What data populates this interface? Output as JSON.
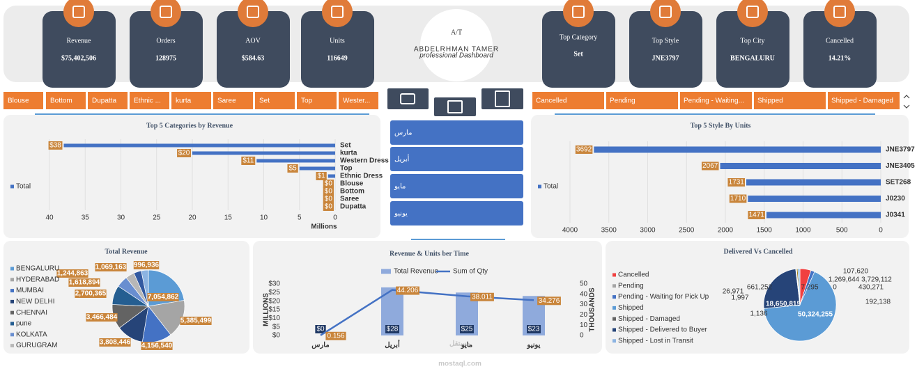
{
  "logo": {
    "monogram": "A/T",
    "name": "ABDELRHMAN TAMER",
    "tagline": "professional Dashboard"
  },
  "kpis": [
    {
      "label": "Revenue",
      "value": "$75,402,506"
    },
    {
      "label": "Orders",
      "value": "128975"
    },
    {
      "label": "AOV",
      "value": "$584.63"
    },
    {
      "label": "Units",
      "value": "116649"
    },
    {
      "label": "Top Category",
      "value": "Set"
    },
    {
      "label": "Top Style",
      "value": "JNE3797"
    },
    {
      "label": "Top City",
      "value": "BENGALURU"
    },
    {
      "label": "Cancelled",
      "value": "14.21%"
    }
  ],
  "category_slicer": [
    "Blouse",
    "Bottom",
    "Dupatta",
    "Ethnic ...",
    "kurta",
    "Saree",
    "Set",
    "Top",
    "Wester..."
  ],
  "status_slicer": [
    "Cancelled",
    "Pending",
    "Pending - Waiting...",
    "Shipped",
    "Shipped - Damaged"
  ],
  "month_slicer": [
    "مارس",
    "أبريل",
    "مايو",
    "يونيو"
  ],
  "watermark": {
    "arabic": "مستقل",
    "latin": "mostaql.com"
  },
  "chart_data": [
    {
      "type": "bar",
      "horizontal": true,
      "title": "Top 5 Categories by Revenue",
      "categories": [
        "Set",
        "kurta",
        "Western Dress",
        "Top",
        "Ethnic Dress",
        "Blouse",
        "Bottom",
        "Saree",
        "Dupatta"
      ],
      "series": [
        {
          "name": "Total",
          "color": "#4472c4",
          "values": [
            38,
            20,
            11,
            5,
            1,
            0,
            0,
            0,
            0
          ],
          "value_labels": [
            "$38",
            "$20",
            "$11",
            "$5",
            "$1",
            "$0",
            "$0",
            "$0",
            "$0"
          ]
        }
      ],
      "xlim": [
        0,
        40
      ],
      "xticks": [
        40,
        35,
        30,
        25,
        20,
        15,
        10,
        5,
        0
      ],
      "x_reversed": true,
      "xlabel": "Millions",
      "grid": true,
      "legend": "left"
    },
    {
      "type": "bar",
      "horizontal": true,
      "title": "Top 5 Style By Units",
      "categories": [
        "JNE3797",
        "JNE3405",
        "SET268",
        "J0230",
        "J0341"
      ],
      "series": [
        {
          "name": "Total",
          "color": "#4472c4",
          "values": [
            3692,
            2067,
            1731,
            1710,
            1471
          ]
        }
      ],
      "xlim": [
        0,
        4000
      ],
      "xticks": [
        4000,
        3500,
        3000,
        2500,
        2000,
        1500,
        1000,
        500,
        0
      ],
      "x_reversed": true,
      "grid": true,
      "legend": "left"
    },
    {
      "type": "pie",
      "title": "Total Revenue",
      "categories": [
        "BENGALURU",
        "HYDERABAD",
        "MUMBAI",
        "NEW DELHI",
        "CHENNAI",
        "pune",
        "KOLKATA",
        "GURUGRAM",
        null,
        null
      ],
      "values": [
        7054862,
        5385499,
        4156540,
        3808446,
        3466484,
        2700365,
        1618894,
        1244863,
        1069163,
        996936
      ],
      "value_labels": [
        "7,054,862",
        "5,385,499",
        "4,156,540",
        "3,808,446",
        "3,466,484",
        "2,700,365",
        "1,618,894",
        "1,244,863",
        "1,069,163",
        "996,936"
      ],
      "colors": [
        "#5b9bd5",
        "#a5a5a5",
        "#4472c4",
        "#264478",
        "#636363",
        "#255e91",
        "#698ed0",
        "#b7b7b7",
        "#335aa1",
        "#8cb4e2"
      ],
      "legend": "left"
    },
    {
      "type": "combo",
      "title": "Revenue & Units ber Time",
      "categories": [
        "مارس",
        "أبريل",
        "مايو",
        "يونيو"
      ],
      "series": [
        {
          "name": "Total Revenue",
          "type": "bar",
          "color": "#8faadc",
          "values": [
            0,
            28,
            25,
            23
          ],
          "value_labels": [
            "$0",
            "$28",
            "$25",
            "$23"
          ]
        },
        {
          "name": "Sum of Qty",
          "type": "line",
          "axis": "y2",
          "color": "#4472c4",
          "values": [
            0.156,
            44.206,
            38.011,
            34.276
          ]
        }
      ],
      "ylim": [
        0,
        30
      ],
      "yticks": [
        {
          "value": 0,
          "label": "$0"
        },
        {
          "value": 5,
          "label": "$5"
        },
        {
          "value": 10,
          "label": "$10"
        },
        {
          "value": 15,
          "label": "$15"
        },
        {
          "value": 20,
          "label": "$20"
        },
        {
          "value": 25,
          "label": "$25"
        },
        {
          "value": 30,
          "label": "$30"
        }
      ],
      "ylabel": "MILLIONS",
      "y2lim": [
        0,
        50
      ],
      "y2ticks": [
        0,
        10,
        20,
        30,
        40,
        50
      ],
      "y2label": "THOUSANDS",
      "legend": "top"
    },
    {
      "type": "pie",
      "title": "Delivered Vs Cancelled",
      "categories": [
        "Cancelled",
        "Pending",
        "Pending - Waiting for Pick Up",
        "Shipped",
        "Shipped - Damaged",
        "Shipped - Delivered to Buyer",
        "Shipped - Lost in Transit",
        null,
        null,
        null,
        null,
        null,
        null
      ],
      "values": [
        3729112,
        0,
        1269644,
        50324255,
        1136,
        18650815,
        192138,
        107620,
        430271,
        7295,
        661252,
        26971,
        1997
      ],
      "value_labels": [
        "3,729,112",
        "0",
        "1,269,644",
        "50,324,255",
        "1,136",
        "18,650,815",
        "192,138",
        "107,620",
        "430,271",
        "7,295",
        "661,252",
        "26,971",
        "1,997"
      ],
      "colors": [
        "#f04040",
        "#a5a5a5",
        "#4472c4",
        "#5b9bd5",
        "#636363",
        "#264478",
        "#8cb4e2",
        "#9e480e",
        "#997300",
        "#43682b",
        "#7cafdd",
        "#f1975a",
        "#b7b7b7"
      ],
      "legend": "left"
    }
  ]
}
